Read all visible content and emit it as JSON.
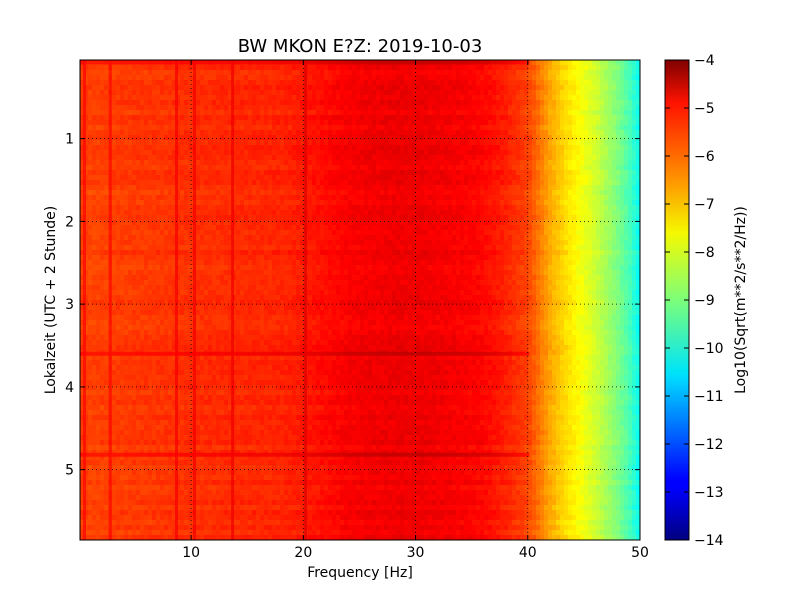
{
  "chart_data": {
    "type": "heatmap",
    "title": "BW MKON E?Z: 2019-10-03",
    "xlabel": "Frequency [Hz]",
    "ylabel": "Lokalzeit (UTC + 2 Stunde)",
    "xlim": [
      0.1,
      50
    ],
    "ylim": [
      5.85,
      0.05
    ],
    "xticks": [
      10,
      20,
      30,
      40,
      50
    ],
    "yticks": [
      1,
      2,
      3,
      4,
      5
    ],
    "grid": true,
    "colormap": "jet",
    "colorbar": {
      "label": "Log10(Sqrt(m**2/s**2/Hz))",
      "min": -14,
      "max": -4,
      "ticks": [
        -4,
        -5,
        -6,
        -7,
        -8,
        -9,
        -10,
        -11,
        -12,
        -13,
        -14
      ]
    },
    "frequency_profile": {
      "freq_hz": [
        0.1,
        1,
        3,
        5,
        8,
        10,
        14,
        18,
        20,
        22,
        24,
        26,
        28,
        30,
        32,
        34,
        36,
        38,
        40,
        41,
        42,
        43,
        44,
        45,
        46,
        47,
        48,
        49,
        50
      ],
      "log10_amplitude": [
        -5.8,
        -5.9,
        -5.85,
        -5.8,
        -5.75,
        -5.7,
        -5.65,
        -5.6,
        -5.5,
        -5.35,
        -5.2,
        -5.15,
        -5.1,
        -5.1,
        -5.15,
        -5.2,
        -5.3,
        -5.55,
        -5.9,
        -6.4,
        -6.9,
        -7.3,
        -7.6,
        -7.9,
        -8.2,
        -8.6,
        -9.0,
        -9.5,
        -10.2
      ]
    },
    "spectral_lines_hz": [
      0.5,
      2.8,
      8.7,
      10.3,
      13.7,
      20.2
    ],
    "time_bands_hours": [
      0.08,
      3.6,
      4.82
    ]
  }
}
